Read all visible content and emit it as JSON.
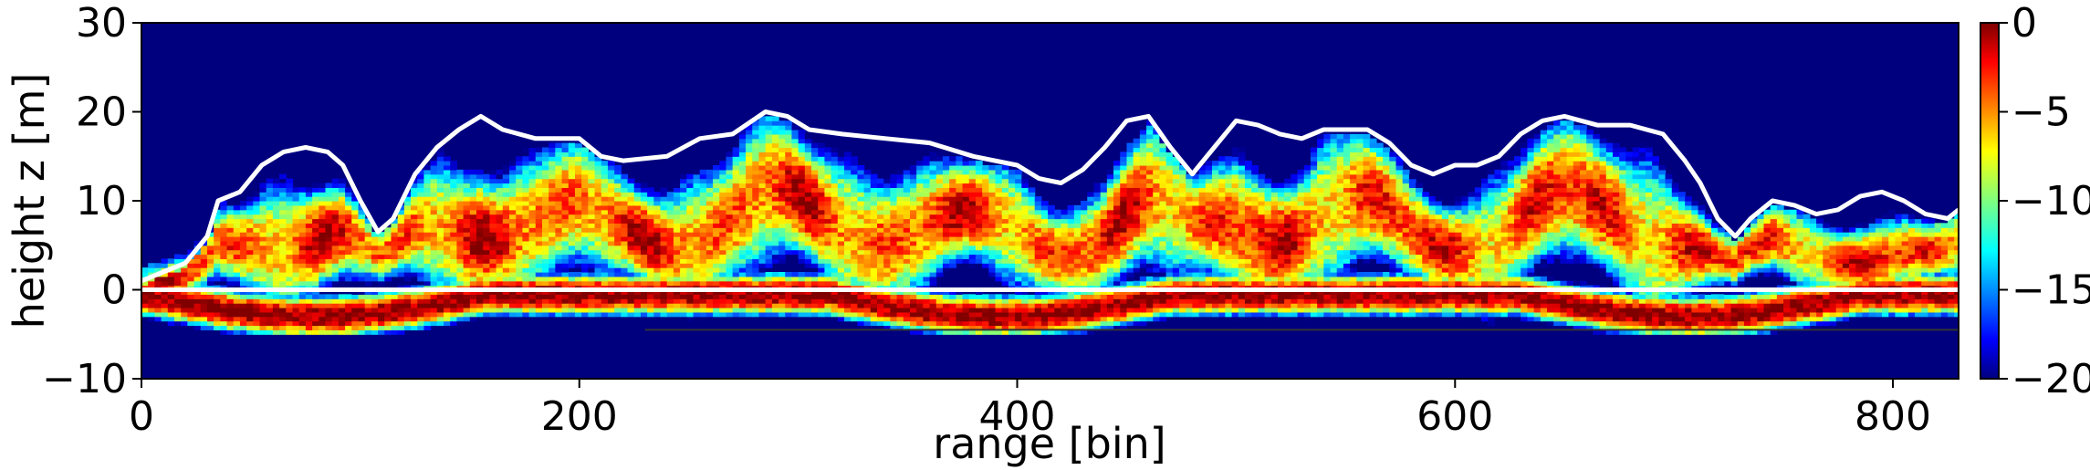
{
  "chart_data": {
    "type": "heatmap",
    "title": "",
    "xlabel": "range [bin]",
    "ylabel": "height z [m]",
    "xlim": [
      0,
      830
    ],
    "ylim": [
      -10,
      30
    ],
    "xticks": [
      0,
      200,
      400,
      600,
      800
    ],
    "yticks": [
      -10,
      0,
      10,
      20,
      30
    ],
    "colorbar": {
      "range": [
        -20,
        0
      ],
      "ticks": [
        0,
        -5,
        -10,
        -15,
        -20
      ],
      "colormap": "jet"
    },
    "grid": false,
    "overlays": {
      "ground_line": {
        "y": 0,
        "color": "#ffffff"
      },
      "lower_line": {
        "y": -4.5,
        "x_range": [
          230,
          830
        ],
        "color": "#333333"
      },
      "canopy_height_line": {
        "color": "#ffffff",
        "points": [
          [
            0,
            1
          ],
          [
            10,
            2
          ],
          [
            20,
            3
          ],
          [
            30,
            6
          ],
          [
            35,
            10
          ],
          [
            45,
            11
          ],
          [
            55,
            14
          ],
          [
            65,
            15.5
          ],
          [
            75,
            16
          ],
          [
            85,
            15.5
          ],
          [
            92,
            14
          ],
          [
            100,
            10
          ],
          [
            108,
            6.5
          ],
          [
            115,
            8
          ],
          [
            125,
            13
          ],
          [
            135,
            16
          ],
          [
            145,
            18
          ],
          [
            155,
            19.5
          ],
          [
            165,
            18
          ],
          [
            180,
            17
          ],
          [
            200,
            17
          ],
          [
            210,
            15
          ],
          [
            220,
            14.5
          ],
          [
            240,
            15
          ],
          [
            255,
            17
          ],
          [
            270,
            17.5
          ],
          [
            285,
            20
          ],
          [
            295,
            19.5
          ],
          [
            305,
            18
          ],
          [
            320,
            17.5
          ],
          [
            340,
            17
          ],
          [
            360,
            16.5
          ],
          [
            380,
            15
          ],
          [
            400,
            14
          ],
          [
            410,
            12.5
          ],
          [
            420,
            12
          ],
          [
            430,
            13.5
          ],
          [
            440,
            16
          ],
          [
            450,
            19
          ],
          [
            460,
            19.5
          ],
          [
            470,
            16
          ],
          [
            480,
            13
          ],
          [
            490,
            16
          ],
          [
            500,
            19
          ],
          [
            510,
            18.5
          ],
          [
            520,
            17.5
          ],
          [
            530,
            17
          ],
          [
            540,
            18
          ],
          [
            550,
            18
          ],
          [
            560,
            18
          ],
          [
            570,
            16.5
          ],
          [
            580,
            14
          ],
          [
            590,
            13
          ],
          [
            600,
            14
          ],
          [
            610,
            14
          ],
          [
            620,
            15
          ],
          [
            630,
            17.5
          ],
          [
            640,
            19
          ],
          [
            650,
            19.5
          ],
          [
            665,
            18.5
          ],
          [
            680,
            18.5
          ],
          [
            695,
            17.5
          ],
          [
            705,
            14.5
          ],
          [
            712,
            12
          ],
          [
            720,
            8
          ],
          [
            728,
            6
          ],
          [
            735,
            8
          ],
          [
            745,
            10
          ],
          [
            755,
            9.5
          ],
          [
            765,
            8.5
          ],
          [
            775,
            9
          ],
          [
            785,
            10.5
          ],
          [
            795,
            11
          ],
          [
            805,
            10
          ],
          [
            815,
            8.5
          ],
          [
            825,
            8
          ],
          [
            830,
            9
          ]
        ]
      }
    }
  }
}
